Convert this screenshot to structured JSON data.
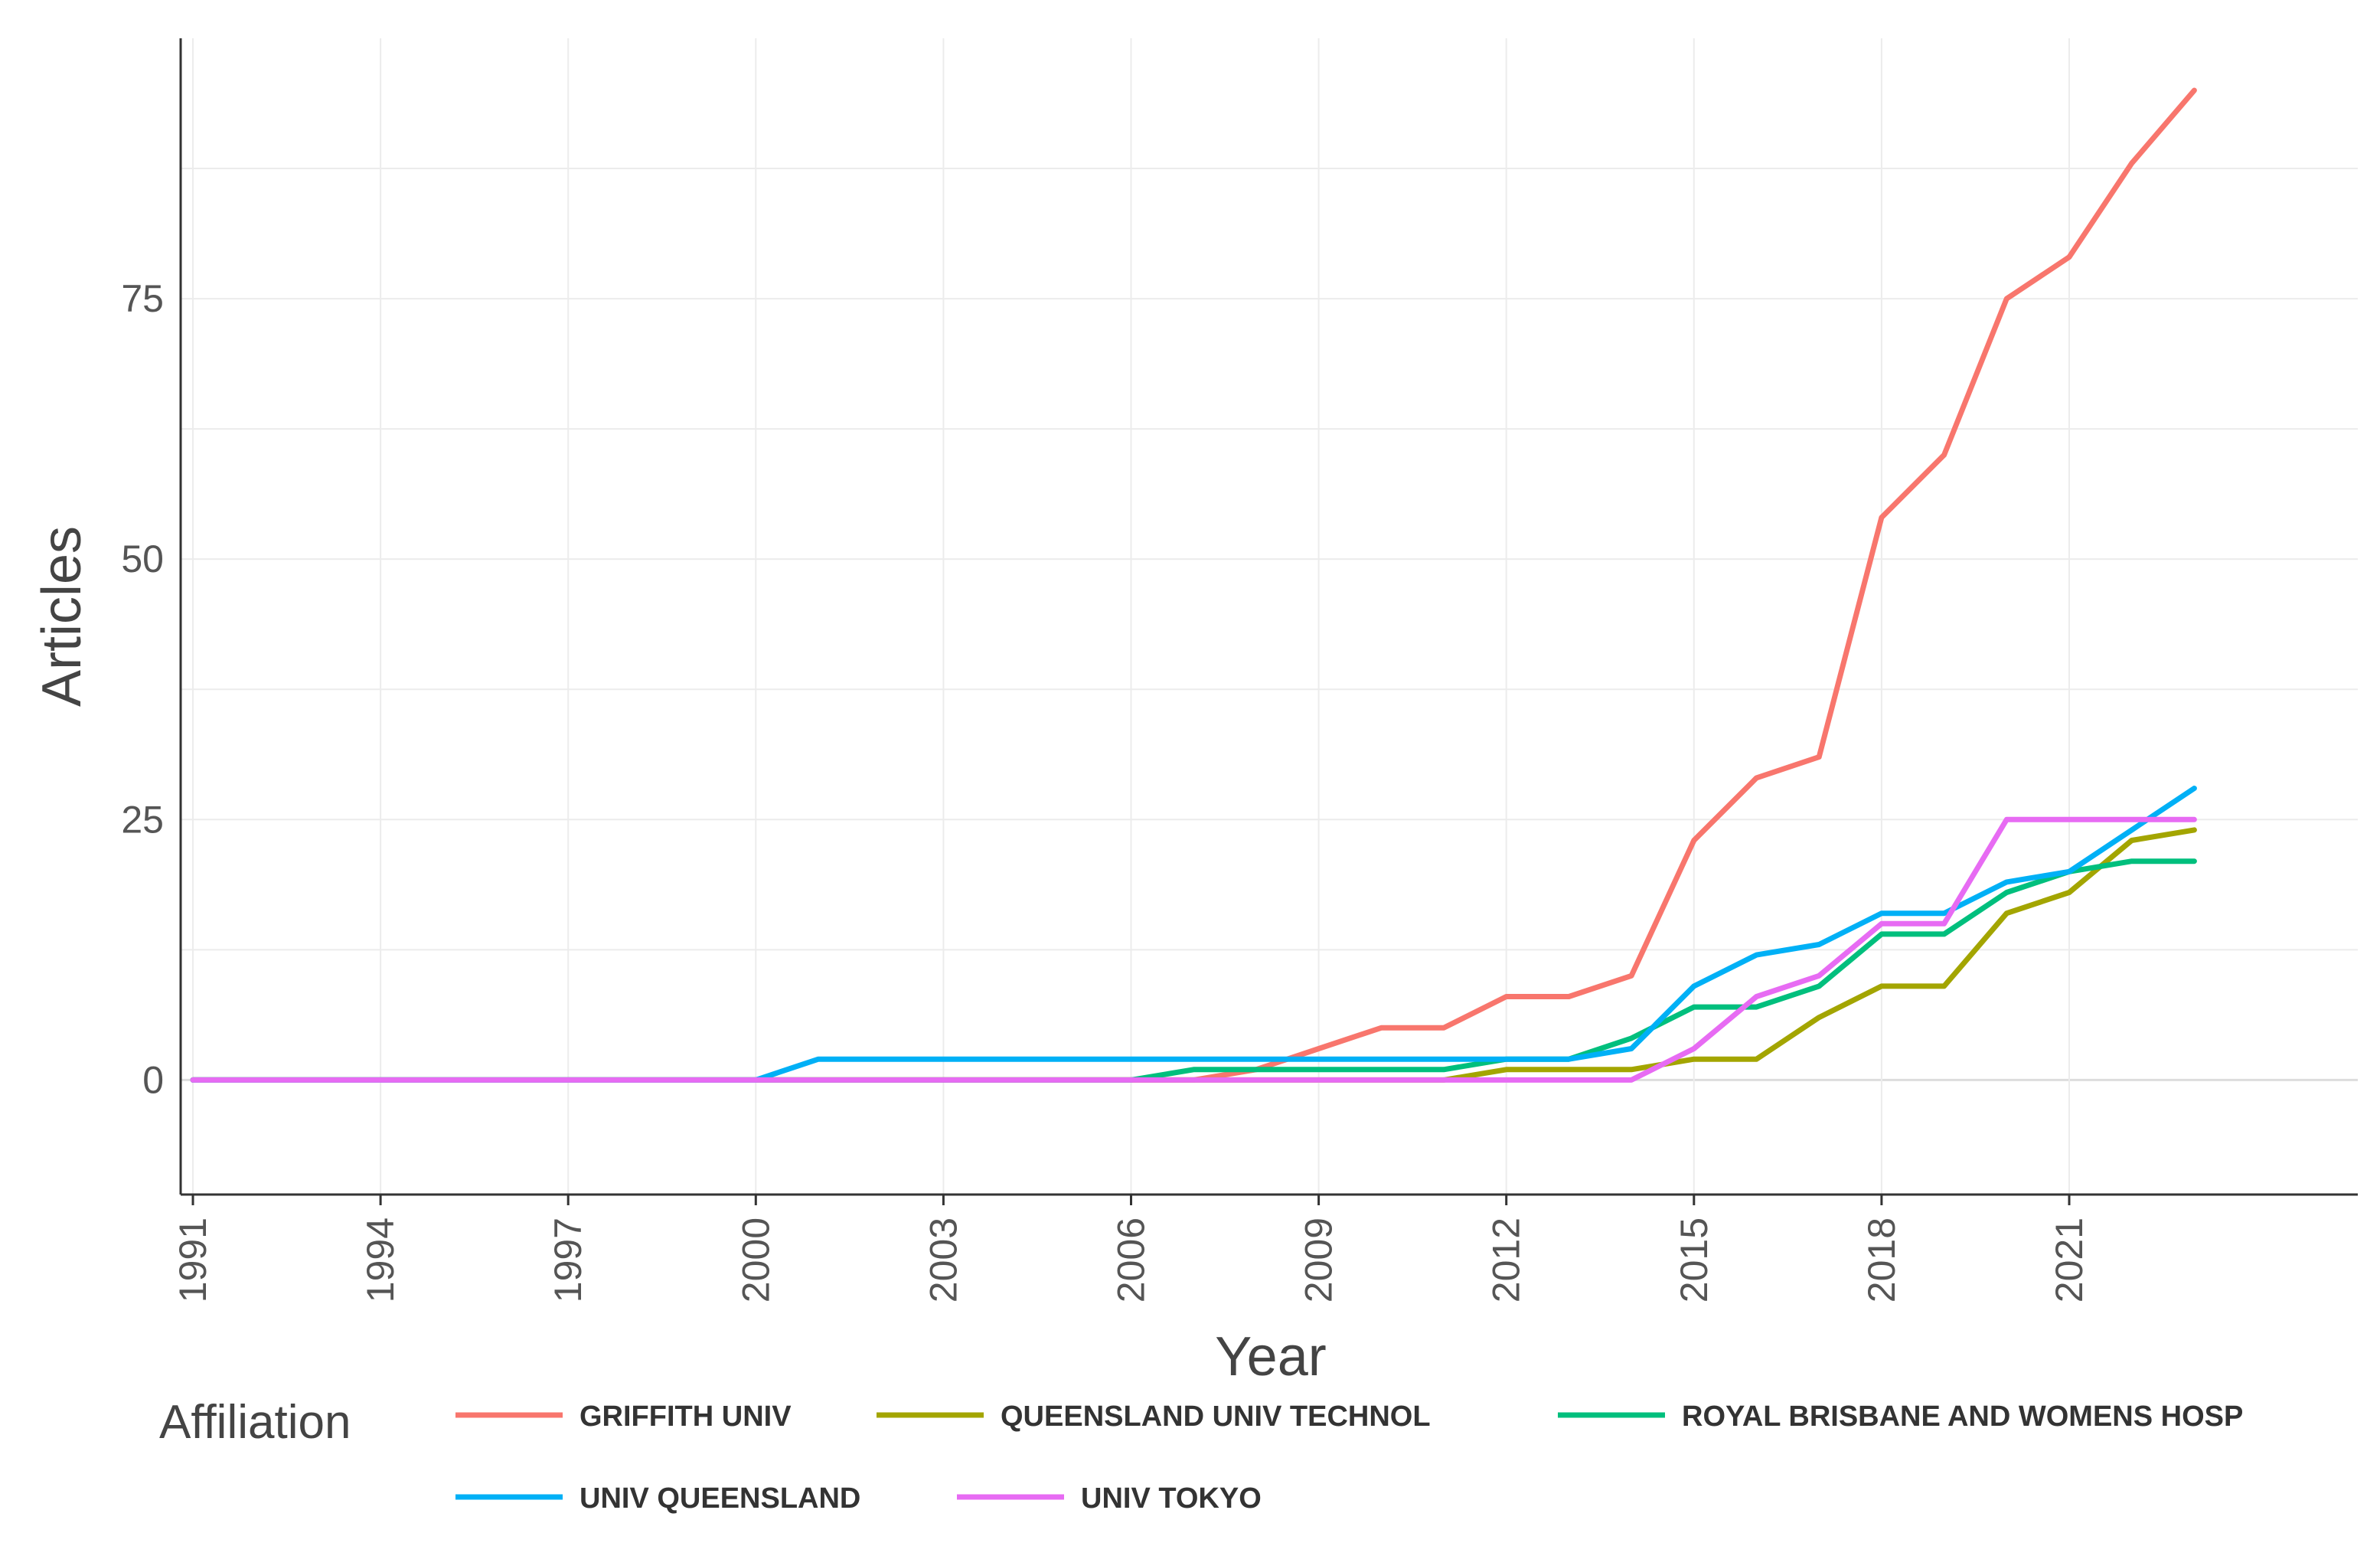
{
  "chart_data": {
    "type": "line",
    "title": "",
    "xlabel": "Year",
    "ylabel": "Articles",
    "xlim": [
      1991,
      2026.5
    ],
    "ylim": [
      -11,
      100
    ],
    "x_ticks": [
      "1991",
      "1994",
      "1997",
      "2000",
      "2003",
      "2006",
      "2009",
      "2012",
      "2015",
      "2018",
      "2021"
    ],
    "y_ticks": [
      "0",
      "25",
      "50",
      "75"
    ],
    "grid": true,
    "legend_title": "Affiliation",
    "legend_position": "bottom",
    "x": [
      1991,
      1992,
      1993,
      1994,
      1995,
      1996,
      1997,
      1998,
      1999,
      2000,
      2001,
      2002,
      2003,
      2004,
      2005,
      2006,
      2007,
      2008,
      2009,
      2010,
      2011,
      2012,
      2013,
      2014,
      2015,
      2016,
      2017,
      2018,
      2019,
      2020,
      2021,
      2022,
      2023
    ],
    "series": [
      {
        "name": "GRIFFITH UNIV",
        "color": "#F8766D",
        "values": [
          0,
          0,
          0,
          0,
          0,
          0,
          0,
          0,
          0,
          0,
          0,
          0,
          0,
          0,
          0,
          0,
          0,
          1,
          3,
          5,
          5,
          8,
          8,
          10,
          23,
          29,
          31,
          54,
          60,
          75,
          79,
          88,
          95
        ]
      },
      {
        "name": "QUEENSLAND UNIV TECHNOL",
        "color": "#A3A500",
        "values": [
          0,
          0,
          0,
          0,
          0,
          0,
          0,
          0,
          0,
          0,
          0,
          0,
          0,
          0,
          0,
          0,
          0,
          0,
          0,
          0,
          0,
          1,
          1,
          1,
          2,
          2,
          6,
          9,
          9,
          16,
          18,
          23,
          24
        ]
      },
      {
        "name": "ROYAL BRISBANE AND WOMENS HOSP",
        "color": "#00BF7D",
        "values": [
          0,
          0,
          0,
          0,
          0,
          0,
          0,
          0,
          0,
          0,
          0,
          0,
          0,
          0,
          0,
          0,
          1,
          1,
          1,
          1,
          1,
          2,
          2,
          4,
          7,
          7,
          9,
          14,
          14,
          18,
          20,
          21,
          21
        ]
      },
      {
        "name": "UNIV QUEENSLAND",
        "color": "#00B0F6",
        "values": [
          0,
          0,
          0,
          0,
          0,
          0,
          0,
          0,
          0,
          0,
          2,
          2,
          2,
          2,
          2,
          2,
          2,
          2,
          2,
          2,
          2,
          2,
          2,
          3,
          9,
          12,
          13,
          16,
          16,
          19,
          20,
          24,
          28
        ]
      },
      {
        "name": "UNIV TOKYO",
        "color": "#E76BF3",
        "values": [
          0,
          0,
          0,
          0,
          0,
          0,
          0,
          0,
          0,
          0,
          0,
          0,
          0,
          0,
          0,
          0,
          0,
          0,
          0,
          0,
          0,
          0,
          0,
          0,
          3,
          8,
          10,
          15,
          15,
          25,
          25,
          25,
          25
        ]
      }
    ]
  }
}
